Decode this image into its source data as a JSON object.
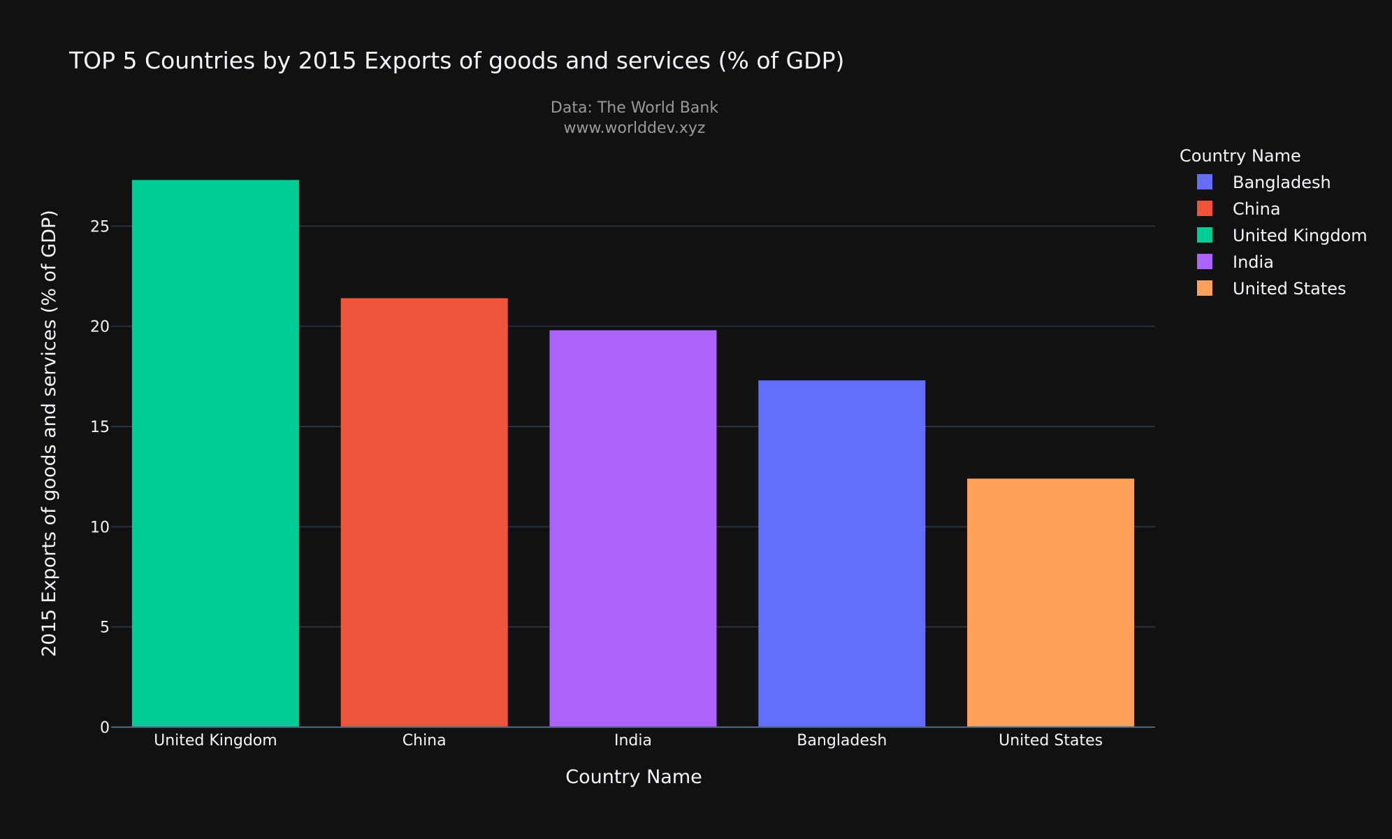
{
  "chart_data": {
    "type": "bar",
    "title": "TOP 5 Countries by 2015 Exports of goods and services (% of GDP)",
    "annotation_lines": [
      "Data: The World Bank",
      "www.worlddev.xyz"
    ],
    "xlabel": "Country Name",
    "ylabel": "2015 Exports of goods and services (% of GDP)",
    "categories": [
      "United Kingdom",
      "China",
      "India",
      "Bangladesh",
      "United States"
    ],
    "values": [
      27.3,
      21.4,
      19.8,
      17.3,
      12.4
    ],
    "colors": [
      "#00cc96",
      "#ef553b",
      "#ab63fa",
      "#636efa",
      "#ffa15a"
    ],
    "ylim": [
      0,
      28.5
    ],
    "yticks": [
      0,
      5,
      10,
      15,
      20,
      25
    ],
    "grid": true,
    "legend": {
      "title": "Country Name",
      "placement": "top-right",
      "entries": [
        {
          "label": "Bangladesh",
          "color": "#636efa"
        },
        {
          "label": "China",
          "color": "#ef553b"
        },
        {
          "label": "United Kingdom",
          "color": "#00cc96"
        },
        {
          "label": "India",
          "color": "#ab63fa"
        },
        {
          "label": "United States",
          "color": "#ffa15a"
        }
      ]
    }
  }
}
